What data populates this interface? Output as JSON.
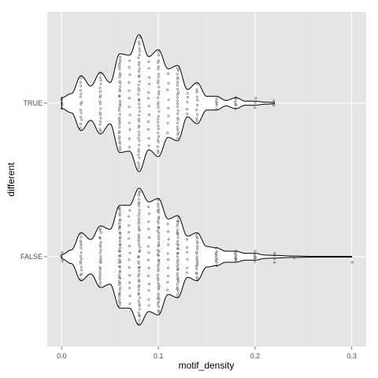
{
  "chart_data": {
    "type": "violin",
    "orientation": "horizontal",
    "xlabel": "motif_density",
    "ylabel": "different",
    "xlim": [
      -0.015,
      0.315
    ],
    "x_ticks": [
      0.0,
      0.1,
      0.2,
      0.3
    ],
    "x_tick_labels": [
      "0.0",
      "0.1",
      "0.2",
      "0.3"
    ],
    "categories": [
      "TRUE",
      "FALSE"
    ],
    "grid": true,
    "style": {
      "panel_bg": "#e5e5e5",
      "grid_color": "#ffffff",
      "violin_fill": "#ffffff",
      "outline": "#000000",
      "point_color": "#333333"
    },
    "series": [
      {
        "category": "TRUE",
        "density_profile": [
          [
            0.0,
            0.08
          ],
          [
            0.01,
            0.14
          ],
          [
            0.02,
            0.4
          ],
          [
            0.03,
            0.25
          ],
          [
            0.04,
            0.45
          ],
          [
            0.05,
            0.3
          ],
          [
            0.06,
            0.72
          ],
          [
            0.07,
            0.7
          ],
          [
            0.08,
            1.0
          ],
          [
            0.09,
            0.68
          ],
          [
            0.1,
            0.78
          ],
          [
            0.11,
            0.5
          ],
          [
            0.12,
            0.55
          ],
          [
            0.13,
            0.2
          ],
          [
            0.14,
            0.3
          ],
          [
            0.15,
            0.1
          ],
          [
            0.16,
            0.1
          ],
          [
            0.17,
            0.04
          ],
          [
            0.18,
            0.08
          ],
          [
            0.19,
            0.03
          ],
          [
            0.2,
            0.03
          ],
          [
            0.21,
            0.015
          ],
          [
            0.22,
            0.01
          ]
        ],
        "points": [
          {
            "x": 0.0,
            "n": 5
          },
          {
            "x": 0.02,
            "n": 14
          },
          {
            "x": 0.04,
            "n": 18
          },
          {
            "x": 0.06,
            "n": 35
          },
          {
            "x": 0.07,
            "n": 12
          },
          {
            "x": 0.08,
            "n": 40
          },
          {
            "x": 0.09,
            "n": 12
          },
          {
            "x": 0.1,
            "n": 30
          },
          {
            "x": 0.11,
            "n": 8
          },
          {
            "x": 0.12,
            "n": 24
          },
          {
            "x": 0.13,
            "n": 5
          },
          {
            "x": 0.14,
            "n": 10
          },
          {
            "x": 0.16,
            "n": 5
          },
          {
            "x": 0.18,
            "n": 6
          },
          {
            "x": 0.2,
            "n": 3
          },
          {
            "x": 0.22,
            "n": 2
          }
        ]
      },
      {
        "category": "FALSE",
        "density_profile": [
          [
            0.0,
            0.03
          ],
          [
            0.01,
            0.1
          ],
          [
            0.02,
            0.35
          ],
          [
            0.03,
            0.25
          ],
          [
            0.04,
            0.45
          ],
          [
            0.05,
            0.4
          ],
          [
            0.06,
            0.75
          ],
          [
            0.07,
            0.75
          ],
          [
            0.08,
            1.0
          ],
          [
            0.09,
            0.8
          ],
          [
            0.1,
            0.85
          ],
          [
            0.11,
            0.55
          ],
          [
            0.12,
            0.6
          ],
          [
            0.13,
            0.3
          ],
          [
            0.14,
            0.35
          ],
          [
            0.15,
            0.15
          ],
          [
            0.16,
            0.13
          ],
          [
            0.17,
            0.08
          ],
          [
            0.18,
            0.08
          ],
          [
            0.19,
            0.05
          ],
          [
            0.2,
            0.05
          ],
          [
            0.21,
            0.025
          ],
          [
            0.22,
            0.02
          ],
          [
            0.24,
            0.01
          ],
          [
            0.26,
            0.006
          ],
          [
            0.3,
            0.005
          ]
        ],
        "points": [
          {
            "x": 0.0,
            "n": 4
          },
          {
            "x": 0.02,
            "n": 16
          },
          {
            "x": 0.04,
            "n": 22
          },
          {
            "x": 0.06,
            "n": 45
          },
          {
            "x": 0.07,
            "n": 14
          },
          {
            "x": 0.08,
            "n": 50
          },
          {
            "x": 0.09,
            "n": 14
          },
          {
            "x": 0.1,
            "n": 45
          },
          {
            "x": 0.11,
            "n": 10
          },
          {
            "x": 0.12,
            "n": 35
          },
          {
            "x": 0.13,
            "n": 6
          },
          {
            "x": 0.14,
            "n": 20
          },
          {
            "x": 0.16,
            "n": 9
          },
          {
            "x": 0.18,
            "n": 8
          },
          {
            "x": 0.2,
            "n": 7
          },
          {
            "x": 0.22,
            "n": 4
          },
          {
            "x": 0.24,
            "n": 1
          },
          {
            "x": 0.3,
            "n": 1
          }
        ]
      }
    ]
  }
}
